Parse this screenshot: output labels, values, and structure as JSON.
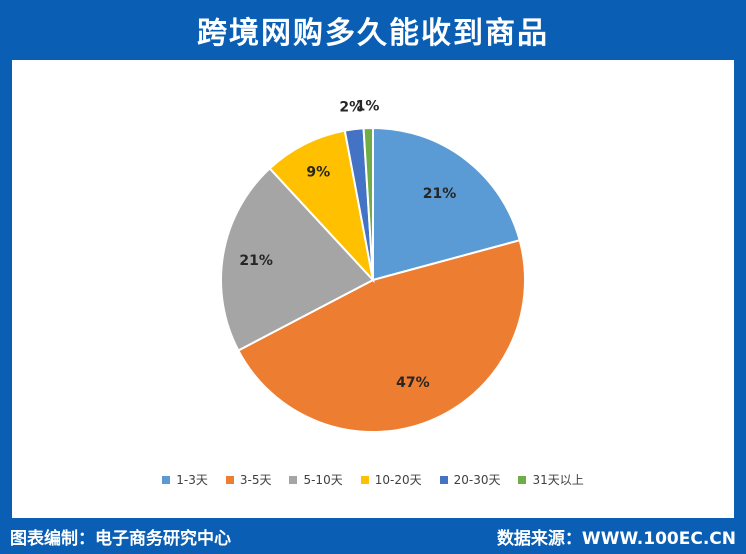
{
  "header": {
    "title": "跨境网购多久能收到商品"
  },
  "footer": {
    "left": "图表编制：电子商务研究中心",
    "right": "数据来源：WWW.100EC.CN"
  },
  "chart_data": {
    "type": "pie",
    "title": "跨境网购多久能收到商品",
    "categories": [
      "1-3天",
      "3-5天",
      "5-10天",
      "10-20天",
      "20-30天",
      "31天以上"
    ],
    "values": [
      21,
      47,
      21,
      9,
      2,
      1
    ],
    "labels": [
      "21%",
      "47%",
      "21%",
      "9%",
      "2%",
      "1%"
    ],
    "colors": [
      "#5b9bd5",
      "#ed7d31",
      "#a5a5a5",
      "#ffc000",
      "#4472c4",
      "#70ad47"
    ],
    "legend_position": "bottom"
  }
}
